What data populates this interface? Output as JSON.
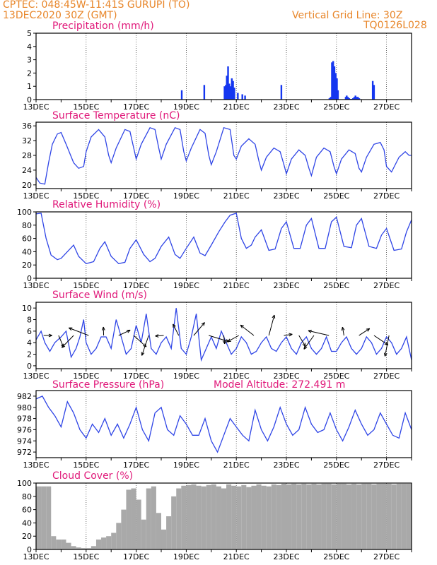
{
  "header": {
    "line1": "CPTEC:   048:45W-11:41S   GURUPI (TO)",
    "line2": "13DEC2020 30Z (GMT)",
    "right1": "Vertical Grid Line: 30Z",
    "right2": "TQ0126L028"
  },
  "colors": {
    "header": "#e8862a",
    "title": "#e0197a",
    "line": "#2f45e6",
    "bar": "#1436f0",
    "cloud": "#a9a9a9",
    "frame": "#000000"
  },
  "chart_data": [
    {
      "type": "bar",
      "title": "Precipitation (mm/h)",
      "x_tick_labels": [
        "13DEC",
        "15DEC",
        "17DEC",
        "19DEC",
        "21DEC",
        "23DEC",
        "25DEC",
        "27DEC"
      ],
      "y_ticks": [
        "0",
        "1",
        "2",
        "3",
        "4",
        "5"
      ],
      "ylim": [
        0,
        5
      ],
      "x_days": [
        0,
        15
      ],
      "series": [
        {
          "x": [
            5.82,
            6.72,
            7.53,
            7.58,
            7.62,
            7.67,
            7.72,
            7.77,
            7.82,
            7.87,
            7.92,
            8.06,
            8.24,
            8.35,
            9.8,
            11.72,
            11.77,
            11.82,
            11.87,
            11.92,
            11.97,
            12.02,
            12.06,
            12.37,
            12.41,
            12.46,
            12.51,
            12.56,
            12.61,
            12.66,
            12.71,
            12.76,
            12.81,
            12.86,
            12.91,
            13.45,
            13.5
          ],
          "values": [
            0.7,
            1.1,
            1.0,
            1.1,
            1.8,
            2.5,
            1.2,
            1.0,
            1.6,
            1.4,
            0.9,
            0.5,
            0.4,
            0.3,
            1.1,
            0.1,
            0.2,
            2.8,
            2.9,
            2.5,
            2.0,
            1.6,
            0.7,
            0.2,
            0.3,
            0.2,
            0.1,
            0.05,
            0.05,
            0.1,
            0.2,
            0.3,
            0.2,
            0.2,
            0.1,
            1.4,
            1.1
          ]
        }
      ]
    },
    {
      "type": "line",
      "title": "Surface Temperature (nC)",
      "x_tick_labels": [
        "13DEC",
        "15DEC",
        "17DEC",
        "19DEC",
        "21DEC",
        "23DEC",
        "25DEC",
        "27DEC"
      ],
      "y_ticks": [
        "20",
        "24",
        "28",
        "32",
        "36"
      ],
      "ylim": [
        19,
        37
      ],
      "x_days": [
        0,
        15
      ],
      "series": [
        {
          "x": [
            0,
            0.15,
            0.35,
            0.5,
            0.65,
            0.85,
            1.0,
            1.2,
            1.5,
            1.7,
            1.9,
            2.0,
            2.2,
            2.5,
            2.75,
            2.9,
            3.0,
            3.2,
            3.55,
            3.75,
            3.9,
            4.0,
            4.2,
            4.55,
            4.75,
            4.9,
            5.0,
            5.2,
            5.55,
            5.75,
            5.9,
            6.0,
            6.2,
            6.55,
            6.75,
            6.9,
            7.0,
            7.2,
            7.5,
            7.75,
            7.9,
            8.0,
            8.2,
            8.5,
            8.75,
            8.9,
            9.0,
            9.2,
            9.5,
            9.75,
            9.9,
            10.0,
            10.2,
            10.5,
            10.75,
            10.9,
            11.0,
            11.2,
            11.5,
            11.75,
            11.9,
            12.0,
            12.2,
            12.5,
            12.75,
            12.9,
            13.0,
            13.2,
            13.5,
            13.75,
            13.9,
            14.0,
            14.2,
            14.5,
            14.75,
            14.9,
            15.0
          ],
          "values": [
            22,
            20.5,
            20.2,
            26,
            31,
            33.8,
            34.2,
            31,
            26,
            24.5,
            25,
            29,
            33,
            35,
            33,
            28,
            26,
            30,
            35,
            34.5,
            30,
            27,
            31,
            35.5,
            35,
            30,
            27,
            31,
            35.5,
            35,
            29,
            26.5,
            30,
            35,
            34,
            28,
            25.5,
            29,
            35.5,
            35,
            28,
            27,
            30.5,
            32.5,
            31,
            26.5,
            24,
            27.5,
            30,
            29,
            25.5,
            23,
            27,
            29.5,
            28,
            24.5,
            22.5,
            27.5,
            30,
            29,
            25,
            23,
            27,
            29.5,
            28.5,
            24.5,
            23.5,
            27.5,
            31,
            31.5,
            29.5,
            25,
            23.5,
            27.5,
            29,
            28,
            28
          ]
        }
      ]
    },
    {
      "type": "line",
      "title": "Relative Humidity (%)",
      "x_tick_labels": [
        "13DEC",
        "15DEC",
        "17DEC",
        "19DEC",
        "21DEC",
        "23DEC",
        "25DEC",
        "27DEC"
      ],
      "y_ticks": [
        "0",
        "20",
        "40",
        "60",
        "80",
        "100"
      ],
      "ylim": [
        0,
        100
      ],
      "x_days": [
        0,
        15
      ],
      "series": [
        {
          "x": [
            0,
            0.2,
            0.4,
            0.6,
            0.85,
            1.0,
            1.15,
            1.5,
            1.7,
            2.0,
            2.3,
            2.55,
            2.75,
            3.0,
            3.3,
            3.55,
            3.75,
            4.0,
            4.3,
            4.55,
            4.75,
            5.0,
            5.3,
            5.55,
            5.75,
            6.0,
            6.3,
            6.55,
            6.75,
            7.0,
            7.3,
            7.55,
            7.75,
            8.0,
            8.2,
            8.4,
            8.6,
            8.75,
            9.0,
            9.3,
            9.55,
            9.8,
            10.0,
            10.3,
            10.55,
            10.8,
            11.0,
            11.3,
            11.55,
            11.8,
            12.0,
            12.3,
            12.6,
            12.8,
            13.0,
            13.3,
            13.6,
            13.8,
            14.0,
            14.3,
            14.6,
            14.8,
            15.0
          ],
          "values": [
            97,
            98,
            60,
            35,
            28,
            30,
            36,
            50,
            33,
            22,
            25,
            45,
            55,
            33,
            22,
            24,
            45,
            58,
            36,
            25,
            30,
            48,
            62,
            36,
            30,
            45,
            62,
            38,
            34,
            50,
            70,
            85,
            95,
            98,
            60,
            45,
            50,
            62,
            73,
            42,
            44,
            75,
            85,
            45,
            45,
            80,
            90,
            45,
            45,
            85,
            92,
            48,
            46,
            80,
            90,
            48,
            45,
            65,
            75,
            42,
            44,
            70,
            88
          ]
        }
      ]
    },
    {
      "type": "line",
      "title": "Surface Wind (m/s)",
      "x_tick_labels": [
        "13DEC",
        "15DEC",
        "17DEC",
        "19DEC",
        "21DEC",
        "23DEC",
        "25DEC",
        "27DEC"
      ],
      "y_ticks": [
        "0",
        "2",
        "4",
        "6",
        "8",
        "10"
      ],
      "ylim": [
        -0.5,
        11
      ],
      "x_days": [
        0,
        15
      ],
      "series": [
        {
          "x": [
            0,
            0.2,
            0.35,
            0.55,
            0.75,
            1.0,
            1.2,
            1.4,
            1.6,
            1.75,
            1.9,
            2.0,
            2.2,
            2.4,
            2.6,
            2.8,
            3.0,
            3.2,
            3.4,
            3.6,
            3.8,
            4.0,
            4.2,
            4.4,
            4.6,
            4.8,
            5.0,
            5.2,
            5.4,
            5.6,
            5.8,
            6.0,
            6.2,
            6.4,
            6.6,
            6.8,
            7.0,
            7.2,
            7.4,
            7.6,
            7.8,
            8.0,
            8.2,
            8.4,
            8.6,
            8.8,
            9.0,
            9.2,
            9.4,
            9.6,
            9.8,
            10.0,
            10.2,
            10.4,
            10.6,
            10.8,
            11.0,
            11.2,
            11.4,
            11.6,
            11.8,
            12.0,
            12.2,
            12.4,
            12.6,
            12.8,
            13.0,
            13.2,
            13.4,
            13.6,
            13.8,
            14.0,
            14.2,
            14.4,
            14.6,
            14.8,
            15.0
          ],
          "values": [
            4.5,
            6,
            4,
            2.5,
            4,
            5,
            6,
            1.5,
            3,
            5,
            8,
            4,
            2,
            3,
            5,
            5,
            3,
            8,
            5,
            2,
            3,
            7,
            4,
            9,
            3,
            2,
            4,
            5,
            3,
            10,
            3,
            2,
            5,
            9,
            1,
            3,
            5,
            3,
            6,
            4,
            2,
            3,
            5,
            4,
            2,
            2.5,
            4,
            5,
            3,
            2.5,
            4,
            5,
            3,
            2,
            4,
            5,
            3,
            2,
            3,
            5,
            2.5,
            2.5,
            4,
            5,
            3,
            2,
            3,
            5,
            4,
            2,
            3,
            5,
            4,
            2,
            3,
            5,
            1
          ]
        }
      ],
      "arrows_note": "wind vectors"
    },
    {
      "type": "line",
      "title": "Surface Pressure (hPa)",
      "annotation": "Model Altitude: 272.491 m",
      "x_tick_labels": [
        "13DEC",
        "15DEC",
        "17DEC",
        "19DEC",
        "21DEC",
        "23DEC",
        "25DEC",
        "27DEC"
      ],
      "y_ticks": [
        "972",
        "974",
        "976",
        "978",
        "980",
        "982"
      ],
      "ylim": [
        971,
        983
      ],
      "x_days": [
        0,
        15
      ],
      "series": [
        {
          "x": [
            0,
            0.25,
            0.5,
            0.75,
            1.0,
            1.25,
            1.5,
            1.75,
            2.0,
            2.25,
            2.5,
            2.75,
            3.0,
            3.25,
            3.5,
            3.75,
            4.0,
            4.25,
            4.5,
            4.75,
            5.0,
            5.25,
            5.5,
            5.75,
            6.0,
            6.25,
            6.5,
            6.75,
            7.0,
            7.25,
            7.5,
            7.75,
            8.0,
            8.25,
            8.5,
            8.75,
            9.0,
            9.25,
            9.5,
            9.75,
            10.0,
            10.25,
            10.5,
            10.75,
            11.0,
            11.25,
            11.5,
            11.75,
            12.0,
            12.25,
            12.5,
            12.75,
            13.0,
            13.25,
            13.5,
            13.75,
            14.0,
            14.25,
            14.5,
            14.75,
            15.0
          ],
          "values": [
            981.5,
            982,
            980,
            978.5,
            976.5,
            981,
            979,
            976,
            974.5,
            977,
            975.5,
            978,
            975,
            977,
            974.5,
            977,
            980,
            976,
            974,
            979,
            980,
            976,
            975,
            978.5,
            977,
            975,
            975,
            978,
            974,
            972,
            975,
            978,
            976.5,
            975,
            974,
            979.5,
            976,
            974,
            976.5,
            980,
            977,
            975,
            976,
            980,
            977,
            975.5,
            976,
            979,
            976,
            974,
            976.5,
            979.5,
            977,
            975,
            976,
            979,
            977,
            975,
            974.5,
            979,
            976
          ]
        }
      ]
    },
    {
      "type": "bar",
      "title": "Cloud Cover (%)",
      "x_tick_labels": [
        "13DEC",
        "15DEC",
        "17DEC",
        "19DEC",
        "21DEC",
        "23DEC",
        "25DEC",
        "27DEC"
      ],
      "y_ticks": [
        "0",
        "20",
        "40",
        "60",
        "80",
        "100"
      ],
      "ylim": [
        0,
        100
      ],
      "x_days": [
        0,
        15
      ],
      "series": [
        {
          "x": [
            0.1,
            0.3,
            0.5,
            0.7,
            0.9,
            1.1,
            1.3,
            1.5,
            1.7,
            1.9,
            2.1,
            2.3,
            2.5,
            2.7,
            2.9,
            3.1,
            3.3,
            3.5,
            3.7,
            3.9,
            4.1,
            4.3,
            4.5,
            4.7,
            4.9,
            5.1,
            5.3,
            5.5,
            5.7,
            5.9,
            6.1,
            6.3,
            6.5,
            6.7,
            6.9,
            7.1,
            7.3,
            7.5,
            7.7,
            7.9,
            8.1,
            8.3,
            8.5,
            8.7,
            8.9,
            9.1,
            9.3,
            9.5,
            9.7,
            9.9,
            10.1,
            10.3,
            10.5,
            10.7,
            10.9,
            11.1,
            11.3,
            11.5,
            11.7,
            11.9,
            12.1,
            12.3,
            12.5,
            12.7,
            12.9,
            13.1,
            13.3,
            13.5,
            13.7,
            13.9,
            14.1,
            14.3,
            14.5,
            14.7,
            14.9
          ],
          "values": [
            95,
            95,
            95,
            20,
            15,
            15,
            10,
            5,
            3,
            2,
            2,
            5,
            15,
            18,
            20,
            25,
            40,
            60,
            90,
            92,
            75,
            45,
            92,
            95,
            55,
            30,
            50,
            80,
            92,
            96,
            97,
            98,
            96,
            95,
            97,
            98,
            95,
            92,
            98,
            96,
            95,
            97,
            94,
            96,
            98,
            96,
            95,
            98,
            97,
            99,
            98,
            99,
            98,
            99,
            98,
            99,
            98,
            99,
            99,
            98,
            99,
            99,
            98,
            99,
            98,
            99,
            99,
            98,
            99,
            99,
            99,
            98,
            99,
            99,
            99
          ]
        }
      ]
    }
  ]
}
